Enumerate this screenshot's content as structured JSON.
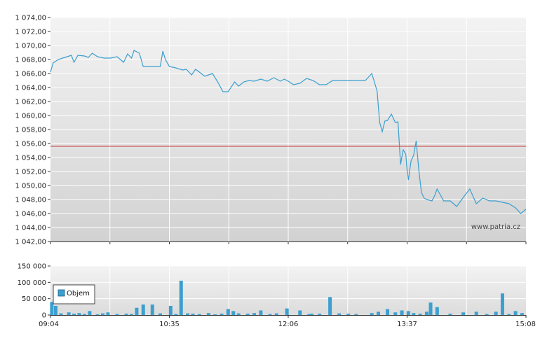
{
  "watermark": "www.patria.cz",
  "colors": {
    "line": "#3b9fcf",
    "volume": "#3b9fcf",
    "reference": "#cc3333",
    "grid": "#ffffff",
    "plot_bg_top": "#f3f3f3",
    "plot_bg_bottom": "#d2d2d2"
  },
  "chart_data": [
    {
      "type": "line",
      "ylim": [
        1042,
        1074
      ],
      "y_ticks": [
        {
          "value": 1074,
          "label": "1 074,00"
        },
        {
          "value": 1072,
          "label": "1 072,00"
        },
        {
          "value": 1070,
          "label": "1 070,00"
        },
        {
          "value": 1068,
          "label": "1 068,00"
        },
        {
          "value": 1066,
          "label": "1 066,00"
        },
        {
          "value": 1064,
          "label": "1 064,00"
        },
        {
          "value": 1062,
          "label": "1 062,00"
        },
        {
          "value": 1060,
          "label": "1 060,00"
        },
        {
          "value": 1058,
          "label": "1 058,00"
        },
        {
          "value": 1056,
          "label": "1 056,00"
        },
        {
          "value": 1054,
          "label": "1 054,00"
        },
        {
          "value": 1052,
          "label": "1 052,00"
        },
        {
          "value": 1050,
          "label": "1 050,00"
        },
        {
          "value": 1048,
          "label": "1 048,00"
        },
        {
          "value": 1046,
          "label": "1 046,00"
        },
        {
          "value": 1044,
          "label": "1 044,00"
        },
        {
          "value": 1042,
          "label": "1 042,00"
        }
      ],
      "reference_value": 1055.6,
      "grid": true,
      "series": [
        {
          "x": [
            "09:04",
            "09:06",
            "09:10",
            "09:15",
            "09:20",
            "09:22",
            "09:25",
            "09:30",
            "09:33",
            "09:36",
            "09:40",
            "09:45",
            "09:50",
            "09:55",
            "10:00",
            "10:03",
            "10:06",
            "10:08",
            "10:12",
            "10:15",
            "10:20",
            "10:28",
            "10:30",
            "10:32",
            "10:35",
            "10:40",
            "10:45",
            "10:48",
            "10:52",
            "10:55",
            "10:58",
            "11:02",
            "11:05",
            "11:08",
            "11:12",
            "11:16",
            "11:20",
            "11:25",
            "11:28",
            "11:32",
            "11:36",
            "11:40",
            "11:45",
            "11:50",
            "11:55",
            "12:00",
            "12:03",
            "12:06",
            "12:10",
            "12:15",
            "12:20",
            "12:25",
            "12:30",
            "12:35",
            "12:40",
            "12:45",
            "12:50",
            "12:55",
            "13:00",
            "13:05",
            "13:10",
            "13:14",
            "13:16",
            "13:18",
            "13:20",
            "13:22",
            "13:25",
            "13:28",
            "13:30",
            "13:32",
            "13:34",
            "13:36",
            "13:37",
            "13:38",
            "13:40",
            "13:42",
            "13:44",
            "13:46",
            "13:48",
            "13:50",
            "13:52",
            "13:54",
            "13:56",
            "13:58",
            "14:00",
            "14:05",
            "14:10",
            "14:15",
            "14:20",
            "14:25",
            "14:30",
            "14:35",
            "14:40",
            "14:45",
            "14:50",
            "14:55",
            "15:00",
            "15:04",
            "15:08"
          ],
          "values": [
            1066.2,
            1067.5,
            1068.0,
            1068.3,
            1068.6,
            1067.6,
            1068.6,
            1068.5,
            1068.3,
            1068.9,
            1068.4,
            1068.2,
            1068.2,
            1068.4,
            1067.6,
            1068.8,
            1068.2,
            1069.3,
            1068.9,
            1067.0,
            1067.0,
            1067.0,
            1069.2,
            1068.0,
            1067.0,
            1066.8,
            1066.5,
            1066.6,
            1065.8,
            1066.6,
            1066.2,
            1065.6,
            1065.8,
            1066.0,
            1064.8,
            1063.4,
            1063.4,
            1064.8,
            1064.2,
            1064.8,
            1065.0,
            1064.9,
            1065.2,
            1064.9,
            1065.4,
            1064.9,
            1065.2,
            1064.9,
            1064.4,
            1064.6,
            1065.3,
            1065.0,
            1064.4,
            1064.4,
            1065.0,
            1065.0,
            1065.0,
            1065.0,
            1065.0,
            1065.0,
            1066.0,
            1063.5,
            1059.0,
            1057.7,
            1059.2,
            1059.3,
            1060.2,
            1059.0,
            1059.1,
            1053.0,
            1055.1,
            1054.5,
            1052.2,
            1050.8,
            1053.5,
            1054.3,
            1056.4,
            1052.1,
            1049.0,
            1048.2,
            1048.0,
            1047.9,
            1047.8,
            1048.5,
            1049.5,
            1047.8,
            1047.8,
            1047.0,
            1048.3,
            1049.5,
            1047.4,
            1048.2,
            1047.8,
            1047.8,
            1047.6,
            1047.4,
            1046.8,
            1046.0,
            1046.6
          ]
        }
      ]
    },
    {
      "type": "bar",
      "ylim": [
        0,
        150000
      ],
      "y_ticks": [
        {
          "value": 150000,
          "label": "150 000"
        },
        {
          "value": 100000,
          "label": "100 000"
        },
        {
          "value": 50000,
          "label": "50 000"
        },
        {
          "value": 0,
          "label": "0"
        }
      ],
      "x_ticks": [
        "09:04",
        "10:35",
        "12:06",
        "13:37",
        "15:08"
      ],
      "x_range": [
        "09:04",
        "15:08"
      ],
      "legend": {
        "label": "Objem",
        "position": "top-left"
      },
      "series": [
        {
          "name": "Objem",
          "x": [
            "09:05",
            "09:08",
            "09:12",
            "09:18",
            "09:22",
            "09:26",
            "09:30",
            "09:34",
            "09:40",
            "09:44",
            "09:48",
            "09:55",
            "10:02",
            "10:06",
            "10:10",
            "10:15",
            "10:22",
            "10:28",
            "10:36",
            "10:40",
            "10:44",
            "10:49",
            "10:53",
            "10:58",
            "11:05",
            "11:10",
            "11:15",
            "11:20",
            "11:24",
            "11:28",
            "11:35",
            "11:40",
            "11:45",
            "11:52",
            "11:57",
            "12:05",
            "12:15",
            "12:22",
            "12:24",
            "12:30",
            "12:38",
            "12:45",
            "12:52",
            "12:58",
            "13:10",
            "13:15",
            "13:22",
            "13:28",
            "13:33",
            "13:38",
            "13:42",
            "13:47",
            "13:52",
            "13:55",
            "14:00",
            "14:10",
            "14:20",
            "14:30",
            "14:38",
            "14:45",
            "14:50",
            "14:55",
            "15:00",
            "15:05"
          ],
          "values": [
            40000,
            28000,
            5000,
            8000,
            4000,
            6000,
            3000,
            12000,
            2000,
            5000,
            8000,
            3000,
            4000,
            3000,
            22000,
            32000,
            32000,
            5000,
            28000,
            3000,
            105000,
            5000,
            4000,
            3000,
            6000,
            2000,
            4000,
            18000,
            12000,
            5000,
            4000,
            6000,
            14000,
            3000,
            5000,
            20000,
            14000,
            3000,
            4000,
            4000,
            55000,
            5000,
            4000,
            3000,
            6000,
            10000,
            18000,
            8000,
            14000,
            12000,
            6000,
            4000,
            10000,
            38000,
            24000,
            4000,
            8000,
            10000,
            3000,
            10000,
            66000,
            3000,
            12000,
            6000
          ]
        }
      ]
    }
  ]
}
